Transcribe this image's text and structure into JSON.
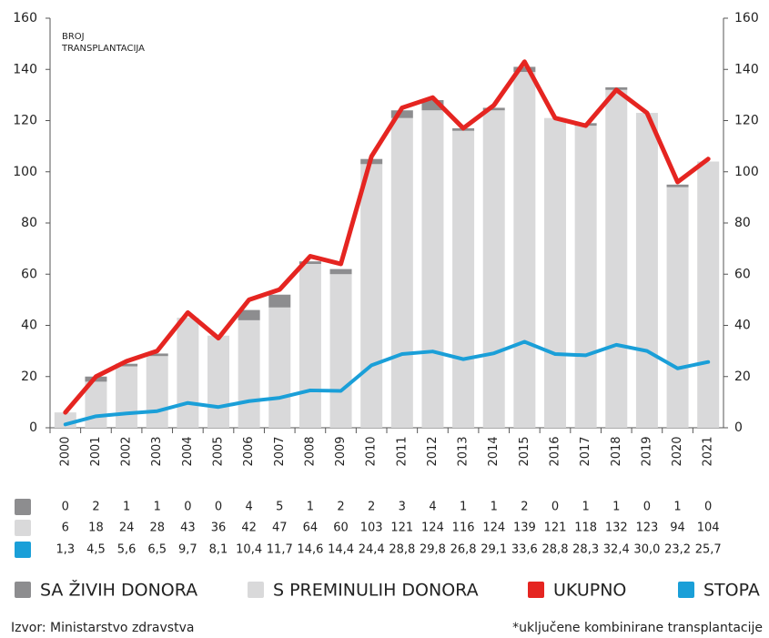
{
  "chart_data": {
    "type": "bar_line",
    "y_label": [
      "BROJ",
      "TRANSPLANTACIJA"
    ],
    "categories": [
      "2000",
      "2001",
      "2002",
      "2003",
      "2004",
      "2005",
      "2006",
      "2007",
      "2008",
      "2009",
      "2010",
      "2011",
      "2012",
      "2013",
      "2014",
      "2015",
      "2016",
      "2017",
      "2018",
      "2019",
      "2020",
      "2021"
    ],
    "series": [
      {
        "name": "SA ŽIVIH DONORA",
        "type": "bar",
        "color": "#8d8d8f",
        "values": [
          0,
          2,
          1,
          1,
          0,
          0,
          4,
          5,
          1,
          2,
          2,
          3,
          4,
          1,
          1,
          2,
          0,
          1,
          1,
          0,
          1,
          0
        ]
      },
      {
        "name": "S PREMINULIH DONORA",
        "type": "bar",
        "color": "#d9d9da",
        "values": [
          6,
          18,
          24,
          28,
          43,
          36,
          42,
          47,
          64,
          60,
          103,
          121,
          124,
          116,
          124,
          139,
          121,
          118,
          132,
          123,
          94,
          104
        ]
      },
      {
        "name": "UKUPNO",
        "type": "line",
        "color": "#e52521",
        "values": [
          6,
          20,
          26,
          30,
          45,
          35,
          50,
          54,
          67,
          64,
          106,
          125,
          129,
          117,
          126,
          143,
          121,
          118,
          132,
          123,
          96,
          105
        ]
      },
      {
        "name": "STOPA",
        "type": "line",
        "color": "#1a9fd8",
        "values": [
          1.3,
          4.5,
          5.6,
          6.5,
          9.7,
          8.1,
          10.4,
          11.7,
          14.6,
          14.4,
          24.4,
          28.8,
          29.8,
          26.8,
          29.1,
          33.6,
          28.8,
          28.3,
          32.4,
          30.0,
          23.2,
          25.7
        ],
        "value_labels": [
          "1,3",
          "4,5",
          "5,6",
          "6,5",
          "9,7",
          "8,1",
          "10,4",
          "11,7",
          "14,6",
          "14,4",
          "24,4",
          "28,8",
          "29,8",
          "26,8",
          "29,1",
          "33,6",
          "28,8",
          "28,3",
          "32,4",
          "30,0",
          "23,2",
          "25,7"
        ]
      }
    ],
    "ylim": [
      0,
      160
    ],
    "yticks": [
      0,
      20,
      40,
      60,
      80,
      100,
      120,
      140,
      160
    ],
    "y2lim": [
      0,
      160
    ],
    "y2ticks": [
      0,
      20,
      40,
      60,
      80,
      100,
      120,
      140,
      160
    ],
    "grid": false,
    "source": "Izvor: Ministarstvo zdravstva",
    "note": "*uključene kombinirane transplantacije"
  }
}
